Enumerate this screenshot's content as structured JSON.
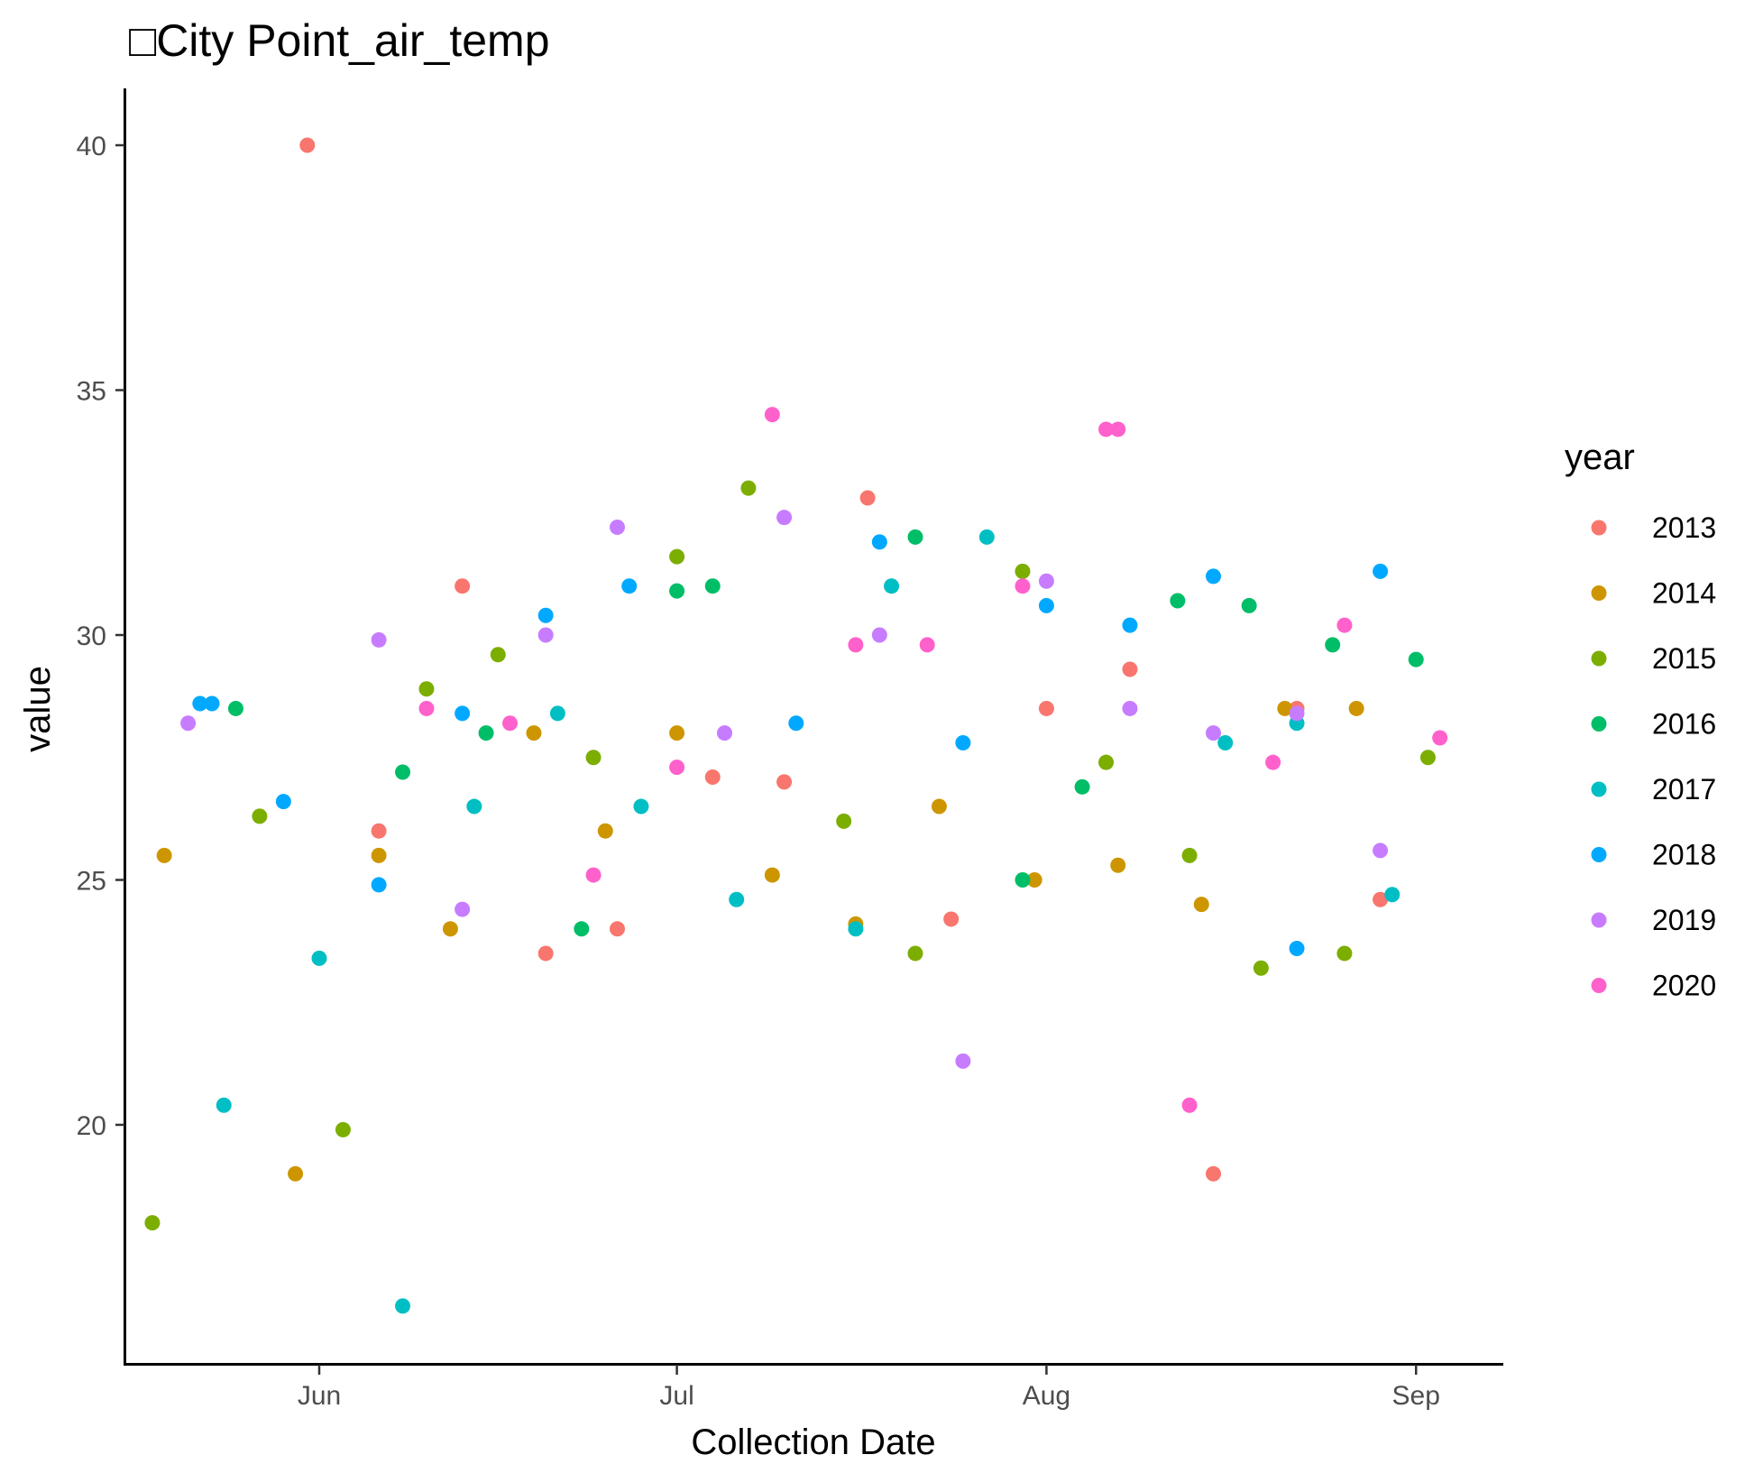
{
  "chart_data": {
    "type": "scatter",
    "title": "□City Point_air_temp",
    "xlabel": "Collection Date",
    "ylabel": "value",
    "legend_title": "year",
    "legend_position": "right",
    "grid": false,
    "x_ticks": [
      "Jun",
      "Jul",
      "Aug",
      "Sep"
    ],
    "y_ticks": [
      20,
      25,
      30,
      35,
      40
    ],
    "ylim": [
      15.8,
      41.2
    ],
    "colors": {
      "2013": "#F8766D",
      "2014": "#CD9600",
      "2015": "#7CAE00",
      "2016": "#00BE67",
      "2017": "#00BFC4",
      "2018": "#00A9FF",
      "2019": "#C77CFF",
      "2020": "#FF61CC"
    },
    "series": [
      {
        "name": "2013",
        "points": [
          [
            "May 31",
            40.0
          ],
          [
            "Jun 6",
            26.0
          ],
          [
            "Jun 13",
            31.0
          ],
          [
            "Jun 20",
            23.5
          ],
          [
            "Jun 26",
            24.0
          ],
          [
            "Jul 4",
            27.1
          ],
          [
            "Jul 10",
            27.0
          ],
          [
            "Jul 17",
            32.8
          ],
          [
            "Jul 24",
            24.2
          ],
          [
            "Aug 1",
            28.5
          ],
          [
            "Aug 8",
            29.3
          ],
          [
            "Aug 15",
            19.0
          ],
          [
            "Aug 22",
            28.5
          ],
          [
            "Aug 29",
            24.6
          ]
        ]
      },
      {
        "name": "2014",
        "points": [
          [
            "May 19",
            25.5
          ],
          [
            "May 30",
            19.0
          ],
          [
            "Jun 6",
            25.5
          ],
          [
            "Jun 12",
            24.0
          ],
          [
            "Jun 19",
            28.0
          ],
          [
            "Jun 25",
            26.0
          ],
          [
            "Jul 1",
            28.0
          ],
          [
            "Jul 9",
            25.1
          ],
          [
            "Jul 16",
            24.1
          ],
          [
            "Jul 23",
            26.5
          ],
          [
            "Jul 31",
            25.0
          ],
          [
            "Aug 7",
            25.3
          ],
          [
            "Aug 14",
            24.5
          ],
          [
            "Aug 21",
            28.5
          ],
          [
            "Aug 27",
            28.5
          ]
        ]
      },
      {
        "name": "2015",
        "points": [
          [
            "May 18",
            18.0
          ],
          [
            "May 27",
            26.3
          ],
          [
            "Jun 3",
            19.9
          ],
          [
            "Jun 10",
            28.9
          ],
          [
            "Jun 16",
            29.6
          ],
          [
            "Jun 24",
            27.5
          ],
          [
            "Jul 1",
            31.6
          ],
          [
            "Jul 7",
            33.0
          ],
          [
            "Jul 15",
            26.2
          ],
          [
            "Jul 21",
            23.5
          ],
          [
            "Jul 30",
            31.3
          ],
          [
            "Aug 6",
            27.4
          ],
          [
            "Aug 13",
            25.5
          ],
          [
            "Aug 19",
            23.2
          ],
          [
            "Aug 26",
            23.5
          ],
          [
            "Sep 2",
            27.5
          ]
        ]
      },
      {
        "name": "2016",
        "points": [
          [
            "May 25",
            28.5
          ],
          [
            "Jun 8",
            27.2
          ],
          [
            "Jun 15",
            28.0
          ],
          [
            "Jun 23",
            24.0
          ],
          [
            "Jul 1",
            30.9
          ],
          [
            "Jul 4",
            31.0
          ],
          [
            "Jul 21",
            32.0
          ],
          [
            "Jul 30",
            25.0
          ],
          [
            "Aug 4",
            26.9
          ],
          [
            "Aug 12",
            30.7
          ],
          [
            "Aug 18",
            30.6
          ],
          [
            "Aug 25",
            29.8
          ],
          [
            "Sep 1",
            29.5
          ]
        ]
      },
      {
        "name": "2017",
        "points": [
          [
            "May 24",
            20.4
          ],
          [
            "Jun 1",
            23.4
          ],
          [
            "Jun 8",
            16.3
          ],
          [
            "Jun 14",
            26.5
          ],
          [
            "Jun 21",
            28.4
          ],
          [
            "Jun 28",
            26.5
          ],
          [
            "Jul 6",
            24.6
          ],
          [
            "Jul 16",
            24.0
          ],
          [
            "Jul 19",
            31.0
          ],
          [
            "Jul 27",
            32.0
          ],
          [
            "Aug 16",
            27.8
          ],
          [
            "Aug 22",
            28.2
          ],
          [
            "Aug 30",
            24.7
          ]
        ]
      },
      {
        "name": "2018",
        "points": [
          [
            "May 22",
            28.6
          ],
          [
            "May 23",
            28.6
          ],
          [
            "May 29",
            26.6
          ],
          [
            "Jun 6",
            24.9
          ],
          [
            "Jun 13",
            28.4
          ],
          [
            "Jun 20",
            30.4
          ],
          [
            "Jun 27",
            31.0
          ],
          [
            "Jul 11",
            28.2
          ],
          [
            "Jul 18",
            31.9
          ],
          [
            "Jul 25",
            27.8
          ],
          [
            "Aug 1",
            30.6
          ],
          [
            "Aug 8",
            30.2
          ],
          [
            "Aug 15",
            31.2
          ],
          [
            "Aug 22",
            23.6
          ],
          [
            "Aug 29",
            31.3
          ]
        ]
      },
      {
        "name": "2019",
        "points": [
          [
            "May 21",
            28.2
          ],
          [
            "Jun 6",
            29.9
          ],
          [
            "Jun 13",
            24.4
          ],
          [
            "Jun 20",
            30.0
          ],
          [
            "Jun 26",
            32.2
          ],
          [
            "Jul 5",
            28.0
          ],
          [
            "Jul 10",
            32.4
          ],
          [
            "Jul 18",
            30.0
          ],
          [
            "Jul 25",
            21.3
          ],
          [
            "Aug 1",
            31.1
          ],
          [
            "Aug 8",
            28.5
          ],
          [
            "Aug 15",
            28.0
          ],
          [
            "Aug 22",
            28.4
          ],
          [
            "Aug 29",
            25.6
          ]
        ]
      },
      {
        "name": "2020",
        "points": [
          [
            "Jun 10",
            28.5
          ],
          [
            "Jun 17",
            28.2
          ],
          [
            "Jun 24",
            25.1
          ],
          [
            "Jul 1",
            27.3
          ],
          [
            "Jul 9",
            34.5
          ],
          [
            "Jul 16",
            29.8
          ],
          [
            "Jul 22",
            29.8
          ],
          [
            "Jul 30",
            31.0
          ],
          [
            "Aug 6",
            34.2
          ],
          [
            "Aug 7",
            34.2
          ],
          [
            "Aug 13",
            20.4
          ],
          [
            "Aug 20",
            27.4
          ],
          [
            "Aug 26",
            30.2
          ],
          [
            "Sep 3",
            27.9
          ]
        ]
      }
    ]
  }
}
